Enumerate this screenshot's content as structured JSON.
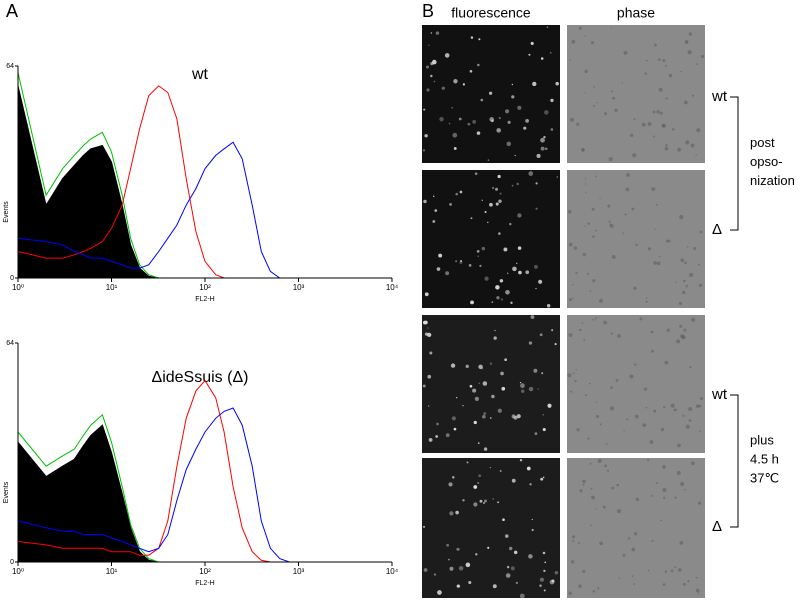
{
  "figure": {
    "panels": [
      "A",
      "B"
    ],
    "columns": [
      "fluorescence",
      "phase"
    ],
    "groups": [
      {
        "top": "wt",
        "bottom": "Δ",
        "note": [
          "post",
          "opso-",
          "nization"
        ]
      },
      {
        "top": "wt",
        "bottom": "Δ",
        "note": [
          "plus",
          "4.5 h",
          "37℃"
        ]
      }
    ]
  },
  "chart_data": [
    {
      "type": "line",
      "title": "wt",
      "xlabel": "FL2-H",
      "ylabel": "Events",
      "xscale": "log",
      "xlim": [
        1,
        10000
      ],
      "ylim": [
        0,
        64
      ],
      "xticks": [
        {
          "value": 1,
          "label": "10⁰"
        },
        {
          "value": 10,
          "label": "10¹"
        },
        {
          "value": 100,
          "label": "10²"
        },
        {
          "value": 1000,
          "label": "10³"
        },
        {
          "value": 10000,
          "label": "10⁴"
        }
      ],
      "yticks": [
        0,
        64
      ],
      "x": [
        1,
        2,
        3,
        4,
        5,
        6,
        8,
        10,
        13,
        16,
        20,
        25,
        32,
        40,
        50,
        63,
        80,
        100,
        130,
        160,
        200,
        250,
        320,
        400,
        500,
        630,
        800,
        1000
      ],
      "series": [
        {
          "color": "#000000",
          "fill": true,
          "values": [
            58,
            22,
            30,
            34,
            37,
            39,
            40,
            35,
            22,
            10,
            3,
            0.5,
            0,
            0,
            0,
            0,
            0,
            0,
            0,
            0,
            0,
            0,
            0,
            0,
            0,
            0,
            0,
            0
          ]
        },
        {
          "color": "#00c000",
          "values": [
            62,
            25,
            33,
            37,
            40,
            42,
            44,
            38,
            25,
            12,
            4,
            1,
            0,
            0,
            0,
            0,
            0,
            0,
            0,
            0,
            0,
            0,
            0,
            0,
            0,
            0,
            0,
            0
          ]
        },
        {
          "color": "#ff0000",
          "values": [
            8,
            6,
            6,
            7,
            8,
            9,
            11,
            15,
            22,
            33,
            45,
            55,
            58,
            56,
            48,
            30,
            14,
            5,
            1,
            0,
            0,
            0,
            0,
            0,
            0,
            0,
            0,
            0
          ]
        },
        {
          "color": "#0000ff",
          "values": [
            12,
            11,
            10,
            8,
            7,
            6,
            6,
            5,
            4,
            3,
            3,
            4,
            8,
            12,
            16,
            22,
            27,
            33,
            37,
            39,
            41,
            36,
            22,
            8,
            2,
            0,
            0,
            0
          ]
        }
      ]
    },
    {
      "type": "line",
      "title": "ΔideSsuis (Δ)",
      "xlabel": "FL2-H",
      "ylabel": "Events",
      "xscale": "log",
      "xlim": [
        1,
        10000
      ],
      "ylim": [
        0,
        64
      ],
      "xticks": [
        {
          "value": 1,
          "label": "10⁰"
        },
        {
          "value": 10,
          "label": "10¹"
        },
        {
          "value": 100,
          "label": "10²"
        },
        {
          "value": 1000,
          "label": "10³"
        },
        {
          "value": 10000,
          "label": "10⁴"
        }
      ],
      "yticks": [
        0,
        64
      ],
      "x": [
        1,
        2,
        3,
        4,
        5,
        6,
        8,
        10,
        13,
        16,
        20,
        25,
        32,
        40,
        50,
        63,
        80,
        100,
        130,
        160,
        200,
        250,
        320,
        400,
        500,
        630,
        800,
        1000
      ],
      "series": [
        {
          "color": "#000000",
          "fill": true,
          "values": [
            35,
            25,
            28,
            30,
            34,
            37,
            40,
            32,
            20,
            10,
            3,
            0.5,
            0,
            0,
            0,
            0,
            0,
            0,
            0,
            0,
            0,
            0,
            0,
            0,
            0,
            0,
            0,
            0
          ]
        },
        {
          "color": "#00c000",
          "values": [
            38,
            28,
            31,
            33,
            37,
            40,
            43,
            35,
            22,
            11,
            4,
            1,
            0,
            0,
            0,
            0,
            0,
            0,
            0,
            0,
            0,
            0,
            0,
            0,
            0,
            0,
            0,
            0
          ]
        },
        {
          "color": "#ff0000",
          "values": [
            6,
            5,
            4,
            4,
            4,
            4,
            4,
            3,
            3,
            3,
            2,
            2,
            4,
            12,
            28,
            42,
            50,
            53,
            48,
            38,
            22,
            10,
            3,
            0.5,
            0,
            0,
            0,
            0
          ]
        },
        {
          "color": "#0000ff",
          "values": [
            12,
            10,
            9,
            9,
            8,
            8,
            8,
            7,
            6,
            5,
            4,
            3,
            4,
            8,
            18,
            27,
            33,
            38,
            42,
            44,
            45,
            40,
            28,
            12,
            4,
            1,
            0,
            0
          ]
        }
      ]
    }
  ]
}
